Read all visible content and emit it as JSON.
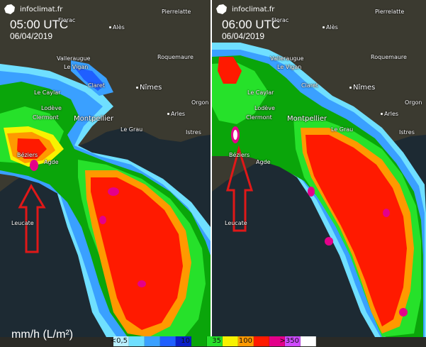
{
  "brand": "infoclimat.fr",
  "panels": [
    {
      "time": "05:00 UTC",
      "date": "06/04/2019"
    },
    {
      "time": "06:00 UTC",
      "date": "06/04/2019"
    }
  ],
  "cities_left": {
    "florac": "Florac",
    "ales": "Alès",
    "pierrelatte": "Pierrelatte",
    "valleraugue": "Valleraugue",
    "le_vigan": "Le Vigan",
    "roquemaure": "Roquemaure",
    "nimes": "Nîmes",
    "clapet": "Claret",
    "le_caylar": "Le Caylar",
    "lodeve": "Lodève",
    "orgon": "Orgon",
    "arles": "Arles",
    "clermont": "Clermont",
    "montpellier": "Montpellier",
    "le_grau": "Le Grau",
    "istres": "Istres",
    "beziers": "Béziers",
    "agde": "Agde",
    "leucate": "Leucate"
  },
  "legend": {
    "unit": "mm/h (L/m²)",
    "swatches": [
      {
        "color": "#b9efff",
        "label": "<0,5"
      },
      {
        "color": "#6fdfff",
        "label": ""
      },
      {
        "color": "#3aa0ff",
        "label": ""
      },
      {
        "color": "#1f5fff",
        "label": ""
      },
      {
        "color": "#0b1ec8",
        "label": "10"
      },
      {
        "color": "#0aa50a",
        "label": ""
      },
      {
        "color": "#26e12a",
        "label": "35"
      },
      {
        "color": "#f7f200",
        "label": ""
      },
      {
        "color": "#ff9900",
        "label": "100"
      },
      {
        "color": "#ff1a00",
        "label": ""
      },
      {
        "color": "#e4008a",
        "label": ""
      },
      {
        "color": "#cf4bff",
        "label": ">350"
      },
      {
        "color": "#ffffff",
        "label": ""
      }
    ]
  },
  "colors": {
    "land": "#3b3a30",
    "sea": "#1d2a33",
    "arrow": "#e01818"
  }
}
